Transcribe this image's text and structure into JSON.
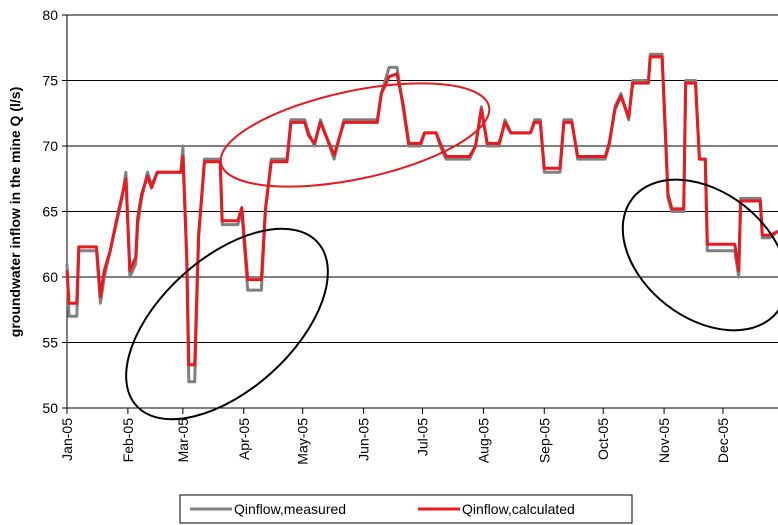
{
  "chart_data": {
    "type": "line",
    "y_label": "groundwater inflow in the mine Q (l/s)",
    "x": [
      0,
      1,
      5,
      6,
      15,
      17,
      19,
      22,
      25,
      28,
      30,
      32,
      35,
      36,
      38,
      41,
      43,
      46,
      58,
      59,
      61,
      62,
      65,
      67,
      70,
      78,
      79,
      87,
      89,
      92,
      99,
      101,
      104,
      112,
      114,
      121,
      123,
      126,
      129,
      136,
      141,
      147,
      158,
      160,
      164,
      168,
      171,
      174,
      180,
      182,
      188,
      190,
      193,
      205,
      208,
      211,
      214,
      220,
      223,
      226,
      236,
      238,
      241,
      243,
      251,
      253,
      257,
      260,
      274,
      276,
      279,
      282,
      286,
      288,
      296,
      297,
      303,
      304,
      306,
      308,
      314,
      315,
      320,
      322,
      325,
      326,
      340,
      342,
      343,
      353,
      354,
      358,
      362
    ],
    "series": [
      {
        "name": "Qinflow,measured",
        "color": "#808080",
        "values": [
          61,
          57,
          57,
          62,
          62,
          58,
          60,
          62,
          64,
          66,
          68,
          60,
          61,
          64,
          66,
          68,
          67,
          68,
          68,
          70,
          61,
          52,
          52,
          63,
          69,
          69,
          64,
          64,
          65,
          59,
          59,
          65,
          69,
          69,
          72,
          72,
          71,
          70,
          72,
          69,
          72,
          72,
          72,
          74,
          76,
          76,
          73,
          70,
          70,
          71,
          71,
          70,
          69,
          69,
          70,
          73,
          70,
          70,
          72,
          71,
          71,
          72,
          72,
          68,
          68,
          72,
          72,
          69,
          69,
          70,
          73,
          74,
          72,
          75,
          75,
          77,
          77,
          73,
          66,
          65,
          65,
          75,
          75,
          69,
          69,
          62,
          62,
          60,
          66,
          66,
          63,
          63,
          63.5
        ]
      },
      {
        "name": "Qinflow,calculated",
        "color": "#e8191f",
        "values": [
          60.5,
          58,
          58,
          62.3,
          62.3,
          58.5,
          60.5,
          62,
          64.2,
          66.2,
          67.5,
          60.5,
          61.5,
          64.5,
          66.3,
          67.7,
          66.8,
          68,
          68,
          69.2,
          61.5,
          53.3,
          53.3,
          63.2,
          68.8,
          68.8,
          64.3,
          64.3,
          65.3,
          59.8,
          59.8,
          65.2,
          68.8,
          68.8,
          71.8,
          71.8,
          70.8,
          70.2,
          71.8,
          69.3,
          71.8,
          71.8,
          71.8,
          74,
          75.3,
          75.5,
          73.3,
          70.2,
          70.2,
          71,
          71,
          70.2,
          69.2,
          69.2,
          70,
          72.8,
          70.2,
          70.2,
          71.8,
          71,
          71,
          71.8,
          71.8,
          68.3,
          68.3,
          71.8,
          71.8,
          69.2,
          69.2,
          70.2,
          72.8,
          73.8,
          72.2,
          74.8,
          74.8,
          76.8,
          76.8,
          73.5,
          66.3,
          65.2,
          65.2,
          74.8,
          74.8,
          69,
          69,
          62.5,
          62.5,
          60.5,
          65.8,
          65.8,
          63.2,
          63.2,
          63.5
        ]
      }
    ],
    "xlim": [
      0,
      362
    ],
    "xticks": [
      {
        "value": 0,
        "label": "Jan-05"
      },
      {
        "value": 31,
        "label": "Feb-05"
      },
      {
        "value": 59,
        "label": "Mar-05"
      },
      {
        "value": 90,
        "label": "Apr-05"
      },
      {
        "value": 120,
        "label": "May-05"
      },
      {
        "value": 151,
        "label": "Jun-05"
      },
      {
        "value": 181,
        "label": "Jul-05"
      },
      {
        "value": 212,
        "label": "Aug-05"
      },
      {
        "value": 243,
        "label": "Sep-05"
      },
      {
        "value": 273,
        "label": "Oct-05"
      },
      {
        "value": 304,
        "label": "Nov-05"
      },
      {
        "value": 334,
        "label": "Dec-05"
      }
    ],
    "ylim": [
      50,
      80
    ],
    "yticks": [
      50,
      55,
      60,
      65,
      70,
      75,
      80
    ],
    "grid": true
  }
}
